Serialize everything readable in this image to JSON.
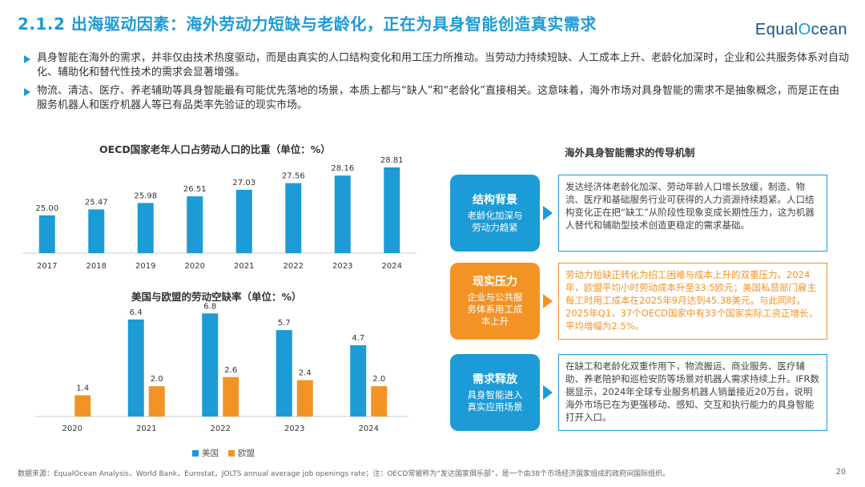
{
  "header": {
    "title": "2.1.2 出海驱动因素：海外劳动力短缺与老龄化，正在为具身智能创造真实需求",
    "logo_prefix": "Equal",
    "logo_o": "O",
    "logo_suffix": "cean"
  },
  "bullets": [
    "具身智能在海外的需求，并非仅由技术热度驱动，而是由真实的人口结构变化和用工压力所推动。当劳动力持续短缺、人工成本上升、老龄化加深时，企业和公共服务体系对自动化、辅助化和替代性技术的需求会显著增强。",
    "物流、清洁、医疗、养老辅助等具身智能最有可能优先落地的场景，本质上都与“缺人”和“老龄化”直接相关。这意味着，海外市场对具身智能的需求不是抽象概念，而是正在由服务机器人和医疗机器人等已有品类率先验证的现实市场。"
  ],
  "chart_data": [
    {
      "type": "bar",
      "title": "OECD国家老年人口占劳动人口的比重（单位：%）",
      "categories": [
        "2017",
        "2018",
        "2019",
        "2020",
        "2021",
        "2022",
        "2023",
        "2024"
      ],
      "values": [
        25.0,
        25.47,
        25.98,
        26.51,
        27.03,
        27.56,
        28.16,
        28.81
      ],
      "labels": [
        "25.00",
        "25.47",
        "25.98",
        "26.51",
        "27.03",
        "27.56",
        "28.16",
        "28.81"
      ],
      "ylim": [
        22,
        29
      ],
      "color": "#1c9bd6"
    },
    {
      "type": "bar",
      "title": "美国与欧盟的劳动空缺率（单位：%）",
      "categories": [
        "2020",
        "2021",
        "2022",
        "2023",
        "2024"
      ],
      "series": [
        {
          "name": "美国",
          "color": "#1c9bd6",
          "values": [
            null,
            6.4,
            6.8,
            5.7,
            4.7
          ],
          "labels": [
            "",
            "6.4",
            "6.8",
            "5.7",
            "4.7"
          ]
        },
        {
          "name": "欧盟",
          "color": "#f39325",
          "values": [
            1.4,
            2.0,
            2.6,
            2.4,
            2.0
          ],
          "labels": [
            "1.4",
            "2.0",
            "2.6",
            "2.4",
            "2.0"
          ]
        }
      ],
      "ylim": [
        0,
        7.5
      ]
    }
  ],
  "mechanism": {
    "title": "海外具身智能需求的传导机制",
    "rows": [
      {
        "heading": "结构背景",
        "sub": "老龄化加深与劳动力趋紧",
        "text": "发达经济体老龄化加深、劳动年龄人口增长放缓，制造、物流、医疗和基础服务行业可获得的人力资源持续趋紧。人口结构变化正在把“缺工”从阶段性现象变成长期性压力，这为机器人替代和辅助型技术创造更稳定的需求基础。"
      },
      {
        "heading": "现实压力",
        "sub": "企业与公共服务体系用工成本上升",
        "text": "劳动力短缺正转化为招工困难与成本上升的双重压力。2024年，欧盟平均小时劳动成本升至33.5欧元；美国私营部门雇主每工时用工成本在2025年9月达到45.38美元。与此同时，2025年Q1，37个OECD国家中有33个国家实际工资正增长，平均增幅为2.5%。"
      },
      {
        "heading": "需求释放",
        "sub": "具身智能进入真实应用场景",
        "text": "在缺工和老龄化双重作用下，物流搬运、商业服务、医疗辅助、养老陪护和巡检安防等场景对机器人需求持续上升。IFR数据显示，2024年全球专业服务机器人销量接近20万台，说明海外市场已在为更强移动、感知、交互和执行能力的具身智能打开入口。"
      }
    ]
  },
  "footer": {
    "source": "数据来源：EqualOcean Analysis，World Bank，Eurostat，JOLTS annual average job openings rate；注：OECD常被称为“发达国家俱乐部”，是一个由38个市场经济国家组成的政府间国际组织。",
    "page": "20"
  }
}
